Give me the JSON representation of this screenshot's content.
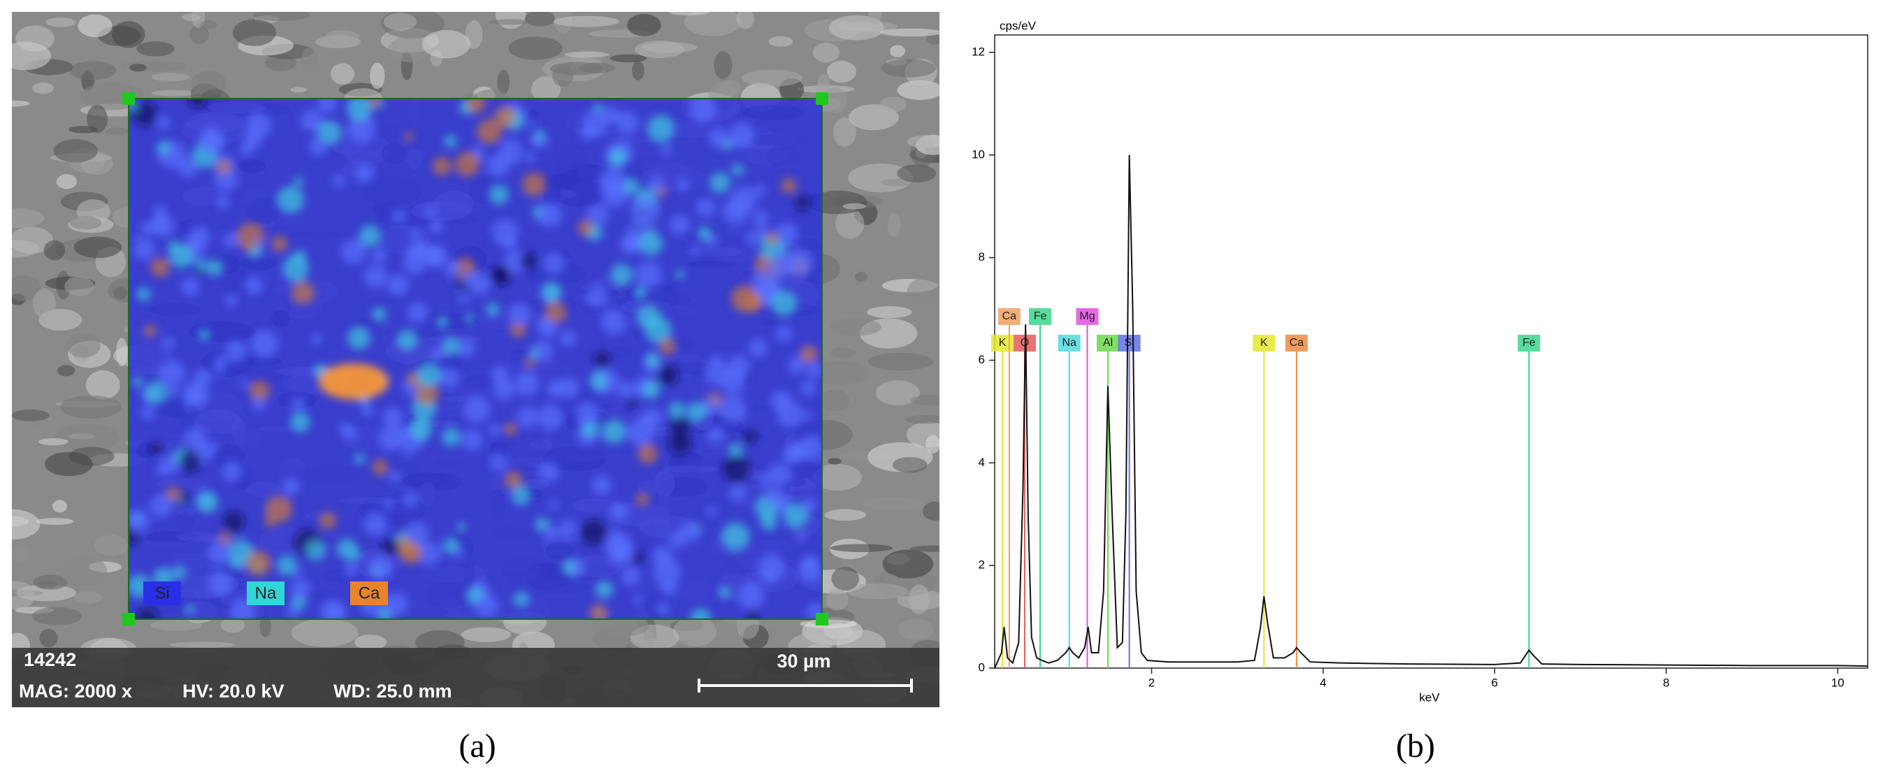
{
  "panel_a": {
    "sample_id": "14242",
    "magnification": "MAG: 2000 x",
    "voltage": "HV: 20.0 kV",
    "working_distance": "WD: 25.0 mm",
    "scale_bar": "30 µm",
    "map_legend": [
      {
        "label": "Si",
        "color": "#2a2ee6"
      },
      {
        "label": "Na",
        "color": "#33d6d6"
      },
      {
        "label": "Ca",
        "color": "#e8852a"
      }
    ]
  },
  "captions": [
    "(a)",
    "(b)"
  ],
  "chart_data": {
    "type": "line",
    "x_label": "keV",
    "y_label": "cps/eV",
    "xlim": [
      0.17,
      10.35
    ],
    "ylim": [
      0,
      12.34
    ],
    "xticks": [
      2,
      4,
      6,
      8,
      10
    ],
    "yticks": [
      0,
      2,
      4,
      6,
      8,
      10,
      12
    ],
    "x": [
      0.17,
      0.25,
      0.28,
      0.32,
      0.38,
      0.45,
      0.5,
      0.53,
      0.56,
      0.6,
      0.66,
      0.72,
      0.8,
      0.9,
      1.0,
      1.04,
      1.08,
      1.15,
      1.22,
      1.26,
      1.3,
      1.38,
      1.44,
      1.49,
      1.54,
      1.6,
      1.66,
      1.7,
      1.74,
      1.78,
      1.82,
      1.88,
      1.95,
      2.2,
      2.6,
      3.0,
      3.2,
      3.27,
      3.31,
      3.35,
      3.42,
      3.55,
      3.65,
      3.69,
      3.74,
      3.85,
      4.2,
      5.0,
      6.0,
      6.3,
      6.36,
      6.4,
      6.45,
      6.55,
      7.0,
      8.0,
      9.0,
      10.0,
      10.35
    ],
    "series": [
      {
        "color": "#111111",
        "values": [
          0.0,
          0.3,
          0.8,
          0.2,
          0.1,
          0.5,
          3.5,
          6.7,
          3.0,
          0.6,
          0.2,
          0.15,
          0.1,
          0.15,
          0.3,
          0.4,
          0.3,
          0.2,
          0.4,
          0.8,
          0.3,
          0.3,
          1.5,
          5.5,
          3.0,
          0.4,
          0.5,
          3.0,
          10.0,
          7.0,
          1.5,
          0.3,
          0.15,
          0.12,
          0.12,
          0.12,
          0.15,
          0.8,
          1.4,
          0.9,
          0.2,
          0.2,
          0.3,
          0.4,
          0.3,
          0.12,
          0.1,
          0.08,
          0.07,
          0.1,
          0.25,
          0.35,
          0.25,
          0.08,
          0.07,
          0.06,
          0.05,
          0.05,
          0.04
        ]
      }
    ],
    "markers": [
      {
        "label": "K",
        "x": 0.26,
        "color": "#e6e62e"
      },
      {
        "label": "Ca",
        "x": 0.34,
        "color": "#f0a060"
      },
      {
        "label": "O",
        "x": 0.52,
        "color": "#e85a5a"
      },
      {
        "label": "Fe",
        "x": 0.7,
        "color": "#3ad68a"
      },
      {
        "label": "Na",
        "x": 1.04,
        "color": "#4fd8e0"
      },
      {
        "label": "Mg",
        "x": 1.25,
        "color": "#e050e0"
      },
      {
        "label": "Al",
        "x": 1.49,
        "color": "#6ad84a"
      },
      {
        "label": "Si",
        "x": 1.74,
        "color": "#6070e8"
      },
      {
        "label": "K",
        "x": 3.31,
        "color": "#e6e62e"
      },
      {
        "label": "Ca",
        "x": 3.69,
        "color": "#f08a40"
      },
      {
        "label": "Fe",
        "x": 6.4,
        "color": "#3ad68a"
      }
    ]
  }
}
